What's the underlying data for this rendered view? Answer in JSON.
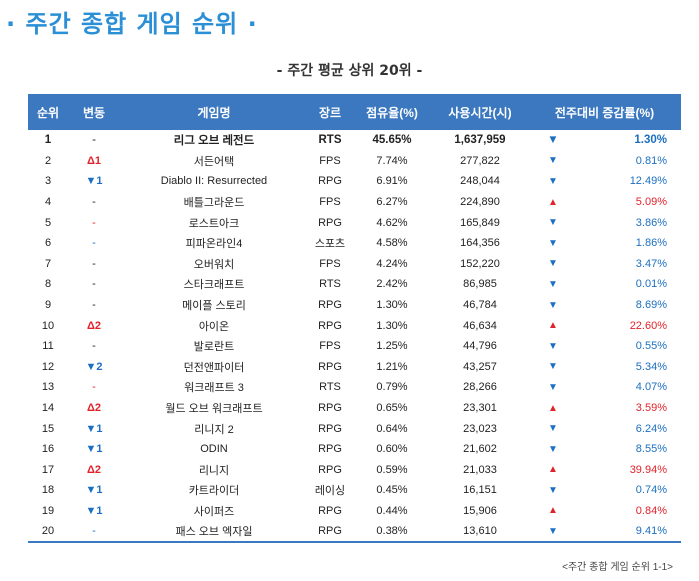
{
  "title": "주간 종합 게임 순위",
  "title_dot_left": "·",
  "title_dot_right": "·",
  "subtitle": "- 주간 평균 상위 20위 -",
  "headers": {
    "rank": "순위",
    "change": "변동",
    "game": "게임명",
    "genre": "장르",
    "share": "점유율(%)",
    "hours": "사용시간(시)",
    "wow": "전주대비 증감률(%)"
  },
  "rows": [
    {
      "rank": "1",
      "change": "-",
      "change_type": "same",
      "game": "리그 오브 레전드",
      "genre": "RTS",
      "share": "45.65%",
      "hours": "1,637,959",
      "trend": "down",
      "trend_icon": "▼",
      "wow": "1.30%"
    },
    {
      "rank": "2",
      "change": "Δ1",
      "change_type": "up",
      "game": "서든어택",
      "genre": "FPS",
      "share": "7.74%",
      "hours": "277,822",
      "trend": "down",
      "trend_icon": "▼",
      "wow": "0.81%"
    },
    {
      "rank": "3",
      "change": "▼1",
      "change_type": "down",
      "game": "Diablo II: Resurrected",
      "genre": "RPG",
      "share": "6.91%",
      "hours": "248,044",
      "trend": "down",
      "trend_icon": "▼",
      "wow": "12.49%"
    },
    {
      "rank": "4",
      "change": "-",
      "change_type": "same",
      "game": "배틀그라운드",
      "genre": "FPS",
      "share": "6.27%",
      "hours": "224,890",
      "trend": "up",
      "trend_icon": "▲",
      "wow": "5.09%"
    },
    {
      "rank": "5",
      "change": "-",
      "change_type": "new",
      "game": "로스트아크",
      "genre": "RPG",
      "share": "4.62%",
      "hours": "165,849",
      "trend": "down",
      "trend_icon": "▼",
      "wow": "3.86%"
    },
    {
      "rank": "6",
      "change": "-",
      "change_type": "blue",
      "game": "피파온라인4",
      "genre": "스포츠",
      "share": "4.58%",
      "hours": "164,356",
      "trend": "down",
      "trend_icon": "▼",
      "wow": "1.86%"
    },
    {
      "rank": "7",
      "change": "-",
      "change_type": "same",
      "game": "오버워치",
      "genre": "FPS",
      "share": "4.24%",
      "hours": "152,220",
      "trend": "down",
      "trend_icon": "▼",
      "wow": "3.47%"
    },
    {
      "rank": "8",
      "change": "-",
      "change_type": "same",
      "game": "스타크래프트",
      "genre": "RTS",
      "share": "2.42%",
      "hours": "86,985",
      "trend": "down",
      "trend_icon": "▼",
      "wow": "0.01%"
    },
    {
      "rank": "9",
      "change": "-",
      "change_type": "same",
      "game": "메이플 스토리",
      "genre": "RPG",
      "share": "1.30%",
      "hours": "46,784",
      "trend": "down",
      "trend_icon": "▼",
      "wow": "8.69%"
    },
    {
      "rank": "10",
      "change": "Δ2",
      "change_type": "up",
      "game": "아이온",
      "genre": "RPG",
      "share": "1.30%",
      "hours": "46,634",
      "trend": "up",
      "trend_icon": "▲",
      "wow": "22.60%"
    },
    {
      "rank": "11",
      "change": "-",
      "change_type": "same",
      "game": "발로란트",
      "genre": "FPS",
      "share": "1.25%",
      "hours": "44,796",
      "trend": "down",
      "trend_icon": "▼",
      "wow": "0.55%"
    },
    {
      "rank": "12",
      "change": "▼2",
      "change_type": "down",
      "game": "던전앤파이터",
      "genre": "RPG",
      "share": "1.21%",
      "hours": "43,257",
      "trend": "down",
      "trend_icon": "▼",
      "wow": "5.34%"
    },
    {
      "rank": "13",
      "change": "-",
      "change_type": "new",
      "game": "워크래프트 3",
      "genre": "RTS",
      "share": "0.79%",
      "hours": "28,266",
      "trend": "down",
      "trend_icon": "▼",
      "wow": "4.07%"
    },
    {
      "rank": "14",
      "change": "Δ2",
      "change_type": "up",
      "game": "월드 오브 워크래프트",
      "genre": "RPG",
      "share": "0.65%",
      "hours": "23,301",
      "trend": "up",
      "trend_icon": "▲",
      "wow": "3.59%"
    },
    {
      "rank": "15",
      "change": "▼1",
      "change_type": "down",
      "game": "리니지 2",
      "genre": "RPG",
      "share": "0.64%",
      "hours": "23,023",
      "trend": "down",
      "trend_icon": "▼",
      "wow": "6.24%"
    },
    {
      "rank": "16",
      "change": "▼1",
      "change_type": "down",
      "game": "ODIN",
      "genre": "RPG",
      "share": "0.60%",
      "hours": "21,602",
      "trend": "down",
      "trend_icon": "▼",
      "wow": "8.55%"
    },
    {
      "rank": "17",
      "change": "Δ2",
      "change_type": "up",
      "game": "리니지",
      "genre": "RPG",
      "share": "0.59%",
      "hours": "21,033",
      "trend": "up",
      "trend_icon": "▲",
      "wow": "39.94%"
    },
    {
      "rank": "18",
      "change": "▼1",
      "change_type": "down",
      "game": "카트라이더",
      "genre": "레이싱",
      "share": "0.45%",
      "hours": "16,151",
      "trend": "down",
      "trend_icon": "▼",
      "wow": "0.74%"
    },
    {
      "rank": "19",
      "change": "▼1",
      "change_type": "down",
      "game": "사이퍼즈",
      "genre": "RPG",
      "share": "0.44%",
      "hours": "15,906",
      "trend": "up",
      "trend_icon": "▲",
      "wow": "0.84%"
    },
    {
      "rank": "20",
      "change": "-",
      "change_type": "blue",
      "game": "패스 오브 엑자일",
      "genre": "RPG",
      "share": "0.38%",
      "hours": "13,610",
      "trend": "down",
      "trend_icon": "▼",
      "wow": "9.41%"
    }
  ],
  "footnote": "<주간 종합 게임 순위 1-1>",
  "colors": {
    "title": "#2b8fd6",
    "header_bg": "#3b78bf",
    "up": "#e0232b",
    "down": "#1c6fc0"
  }
}
